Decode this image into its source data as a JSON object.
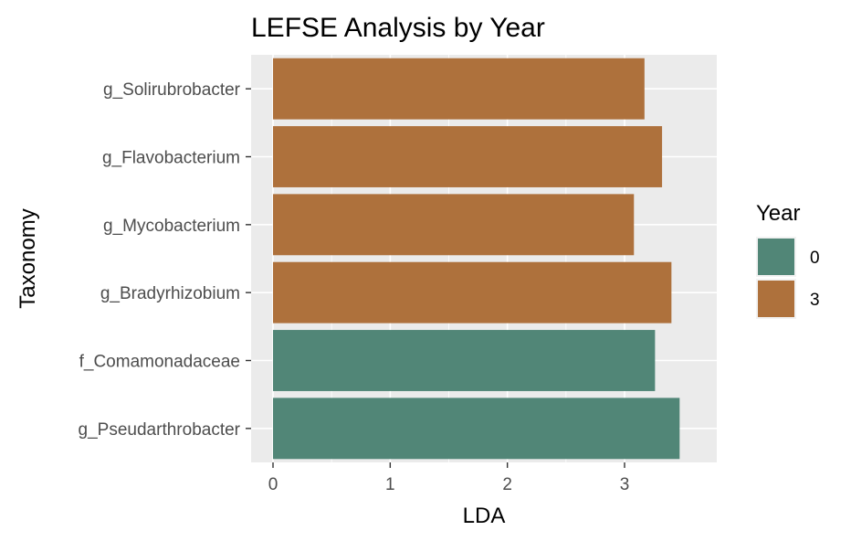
{
  "chart_data": {
    "type": "bar",
    "orientation": "horizontal",
    "title": "LEFSE Analysis by Year",
    "xlabel": "LDA",
    "ylabel": "Taxonomy",
    "xlim": [
      0,
      3.6
    ],
    "x_ticks": [
      "0",
      "1",
      "2",
      "3"
    ],
    "grid": true,
    "legend_position": "right",
    "legend_title": "Year",
    "series_colors": {
      "0": "#518677",
      "3": "#ae713c"
    },
    "legend": [
      {
        "label": "0",
        "color": "#518677"
      },
      {
        "label": "3",
        "color": "#ae713c"
      }
    ],
    "categories": [
      "g_Solirubrobacter",
      "g_Flavobacterium",
      "g_Mycobacterium",
      "g_Bradyrhizobium",
      "f_Comamonadaceae",
      "g_Pseudarthrobacter"
    ],
    "bars": [
      {
        "category": "g_Solirubrobacter",
        "value": 3.17,
        "group": "3"
      },
      {
        "category": "g_Flavobacterium",
        "value": 3.32,
        "group": "3"
      },
      {
        "category": "g_Mycobacterium",
        "value": 3.08,
        "group": "3"
      },
      {
        "category": "g_Bradyrhizobium",
        "value": 3.4,
        "group": "3"
      },
      {
        "category": "f_Comamonadaceae",
        "value": 3.26,
        "group": "0"
      },
      {
        "category": "g_Pseudarthrobacter",
        "value": 3.47,
        "group": "0"
      }
    ]
  }
}
